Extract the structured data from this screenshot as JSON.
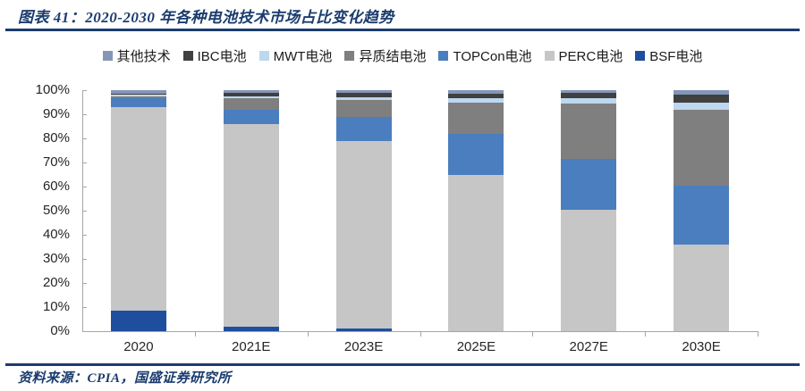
{
  "figure": {
    "title": "图表 41：2020-2030 年各种电池技术市场占比变化趋势",
    "source": "资料来源：CPIA，国盛证券研究所",
    "accent_color": "#1B3C6E"
  },
  "chart_data": {
    "type": "bar",
    "subtype": "stacked-percent-column",
    "title": "2020-2030 年各种电池技术市场占比变化趋势",
    "categories": [
      "2020",
      "2021E",
      "2023E",
      "2025E",
      "2027E",
      "2030E"
    ],
    "unit": "%",
    "ylim": [
      0,
      100
    ],
    "yticks": [
      "100%",
      "90%",
      "80%",
      "70%",
      "60%",
      "50%",
      "40%",
      "30%",
      "20%",
      "10%",
      "0%"
    ],
    "grid": false,
    "legend_position": "top",
    "legend_order": [
      "其他技术",
      "IBC电池",
      "MWT电池",
      "异质结电池",
      "TOPCon电池",
      "PERC电池",
      "BSF电池"
    ],
    "stack_order_bottom_to_top": [
      "BSF电池",
      "PERC电池",
      "TOPCon电池",
      "异质结电池",
      "MWT电池",
      "IBC电池",
      "其他技术"
    ],
    "series": [
      {
        "name": "其他技术",
        "color": "#8496B8",
        "values": [
          1.5,
          1.0,
          1.0,
          1.5,
          1.0,
          2.0
        ]
      },
      {
        "name": "IBC电池",
        "color": "#404040",
        "values": [
          0.5,
          1.5,
          2.0,
          2.0,
          2.5,
          3.0
        ]
      },
      {
        "name": "MWT电池",
        "color": "#BDD7EE",
        "values": [
          0.5,
          1.0,
          1.0,
          1.5,
          2.0,
          3.0
        ]
      },
      {
        "name": "异质结电池",
        "color": "#7F7F7F",
        "values": [
          1.0,
          4.5,
          7.0,
          13.0,
          23.0,
          31.5
        ]
      },
      {
        "name": "TOPCon电池",
        "color": "#4A7EBE",
        "values": [
          3.5,
          6.0,
          10.0,
          17.0,
          21.0,
          24.5
        ]
      },
      {
        "name": "PERC电池",
        "color": "#C6C6C6",
        "values": [
          84.5,
          84.0,
          78.0,
          65.0,
          50.5,
          36.0
        ]
      },
      {
        "name": "BSF电池",
        "color": "#1F4E9E",
        "values": [
          8.5,
          2.0,
          1.0,
          0.0,
          0.0,
          0.0
        ]
      }
    ]
  }
}
